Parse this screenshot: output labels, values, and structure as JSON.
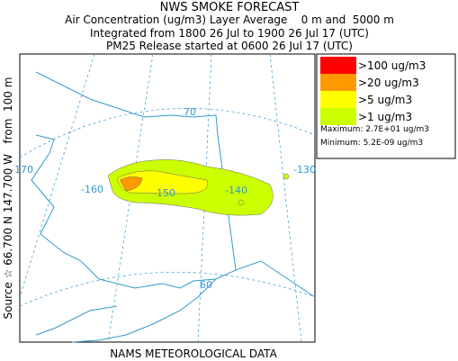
{
  "header": {
    "title": "NWS SMOKE FORECAST",
    "lines": [
      "Air Concentration (ug/m3) Layer Average    0 m and  5000 m",
      "Integrated from 1800 26 Jul to 1900 26 Jul 17 (UTC)",
      "PM25 Release started at 0600 26 Jul 17 (UTC)"
    ]
  },
  "side_text": "Source ☆ 66.700 N 147.700 W   from  100 m",
  "footer": "NAMS METEOROLOGICAL DATA",
  "legend": {
    "entries": [
      {
        "label": ">100 ug/m3",
        "color": "#ff0000"
      },
      {
        "label": ">20 ug/m3",
        "color": "#ff9900"
      },
      {
        "label": ">5 ug/m3",
        "color": "#ffff00"
      },
      {
        "label": ">1 ug/m3",
        "color": "#ccff00"
      }
    ],
    "maximum": "Maximum: 2.7E+01 ug/m3",
    "minimum": "Minimum: 5.2E-09 ug/m3"
  },
  "map": {
    "graticule_labels": [
      "70",
      "-170",
      "-160",
      "-150",
      "-140",
      "-130",
      "60"
    ]
  }
}
